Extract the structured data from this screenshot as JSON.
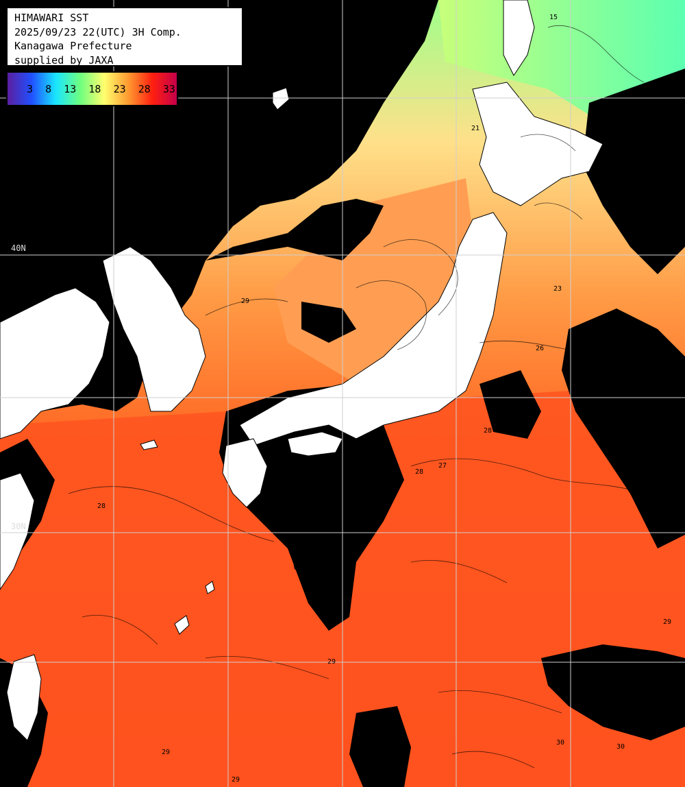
{
  "header": {
    "line1": "HIMAWARI SST",
    "line2": "2025/09/23 22(UTC) 3H Comp.",
    "line3": "Kanagawa Prefecture",
    "line4": "supplied by JAXA"
  },
  "legend": {
    "labels": [
      "3",
      "8",
      "13",
      "18",
      "23",
      "28",
      "33"
    ],
    "colors": [
      "#5b1fa0",
      "#2050ff",
      "#19e6ff",
      "#6dff80",
      "#ffff6e",
      "#ff9a30",
      "#ff1f10",
      "#c5004a"
    ]
  },
  "grid": {
    "lat_labels": [
      "40N",
      "30N"
    ]
  },
  "contours": {
    "labels": [
      "21",
      "23",
      "29",
      "26",
      "28",
      "28",
      "27",
      "28",
      "29",
      "29",
      "29",
      "30",
      "30",
      "29",
      "15"
    ]
  },
  "colors": {
    "land": "#ffffff",
    "cloud": "#000000",
    "grid": "#cfcfcf",
    "sst_cold": "#7dff90",
    "sst_mid": "#ffd27a",
    "sst_warm": "#ff8a3a",
    "sst_hot": "#ff4a1a"
  }
}
